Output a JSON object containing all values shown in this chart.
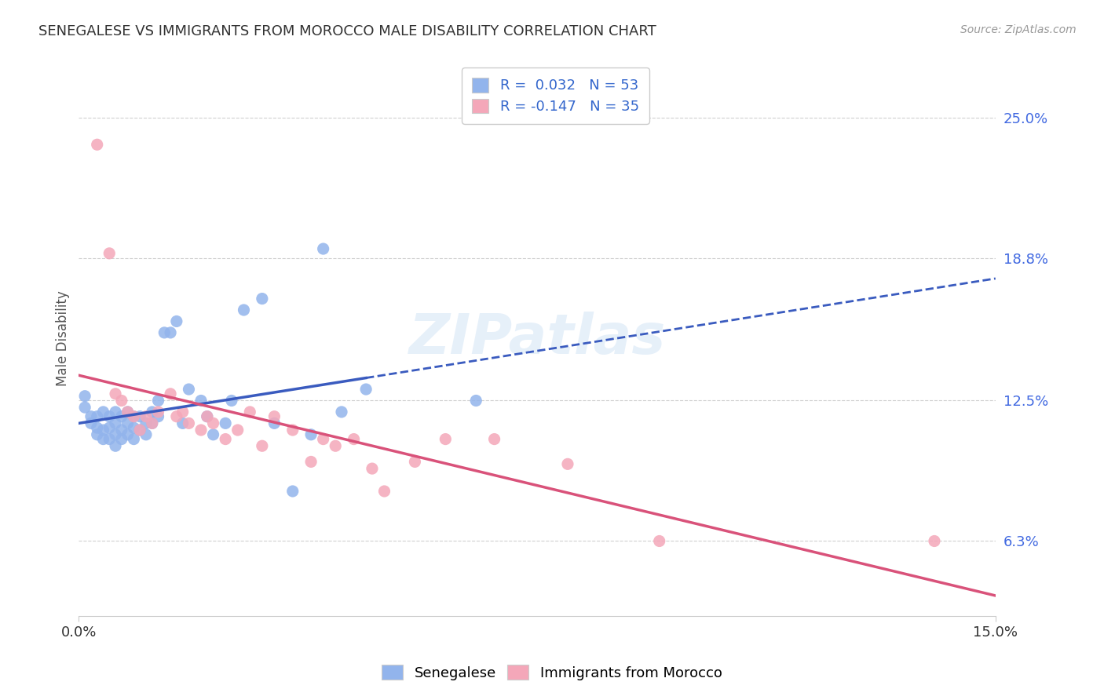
{
  "title": "SENEGALESE VS IMMIGRANTS FROM MOROCCO MALE DISABILITY CORRELATION CHART",
  "source": "Source: ZipAtlas.com",
  "ylabel": "Male Disability",
  "ytick_labels": [
    "6.3%",
    "12.5%",
    "18.8%",
    "25.0%"
  ],
  "ytick_values": [
    0.063,
    0.125,
    0.188,
    0.25
  ],
  "xlim": [
    0.0,
    0.15
  ],
  "ylim": [
    0.03,
    0.275
  ],
  "senegalese_color": "#92b4ec",
  "morocco_color": "#f4a7b9",
  "trend_senegalese_color": "#3a5bbf",
  "trend_morocco_color": "#d9527a",
  "watermark": "ZIPatlas",
  "senegalese_x": [
    0.001,
    0.001,
    0.002,
    0.002,
    0.003,
    0.003,
    0.003,
    0.004,
    0.004,
    0.004,
    0.005,
    0.005,
    0.005,
    0.006,
    0.006,
    0.006,
    0.006,
    0.007,
    0.007,
    0.007,
    0.008,
    0.008,
    0.008,
    0.009,
    0.009,
    0.009,
    0.01,
    0.01,
    0.011,
    0.011,
    0.012,
    0.012,
    0.013,
    0.013,
    0.014,
    0.015,
    0.016,
    0.017,
    0.018,
    0.02,
    0.021,
    0.022,
    0.024,
    0.025,
    0.027,
    0.03,
    0.032,
    0.035,
    0.038,
    0.04,
    0.043,
    0.047,
    0.065
  ],
  "senegalese_y": [
    0.122,
    0.127,
    0.115,
    0.118,
    0.11,
    0.113,
    0.118,
    0.108,
    0.112,
    0.12,
    0.108,
    0.113,
    0.118,
    0.105,
    0.11,
    0.115,
    0.12,
    0.108,
    0.112,
    0.118,
    0.11,
    0.115,
    0.12,
    0.108,
    0.113,
    0.118,
    0.112,
    0.118,
    0.11,
    0.115,
    0.115,
    0.12,
    0.118,
    0.125,
    0.155,
    0.155,
    0.16,
    0.115,
    0.13,
    0.125,
    0.118,
    0.11,
    0.115,
    0.125,
    0.165,
    0.17,
    0.115,
    0.085,
    0.11,
    0.192,
    0.12,
    0.13,
    0.125
  ],
  "morocco_x": [
    0.003,
    0.005,
    0.006,
    0.007,
    0.008,
    0.009,
    0.01,
    0.011,
    0.012,
    0.013,
    0.015,
    0.016,
    0.017,
    0.018,
    0.02,
    0.021,
    0.022,
    0.024,
    0.026,
    0.028,
    0.03,
    0.032,
    0.035,
    0.038,
    0.04,
    0.042,
    0.045,
    0.048,
    0.05,
    0.055,
    0.06,
    0.068,
    0.08,
    0.095,
    0.14
  ],
  "morocco_y": [
    0.238,
    0.19,
    0.128,
    0.125,
    0.12,
    0.118,
    0.112,
    0.118,
    0.115,
    0.12,
    0.128,
    0.118,
    0.12,
    0.115,
    0.112,
    0.118,
    0.115,
    0.108,
    0.112,
    0.12,
    0.105,
    0.118,
    0.112,
    0.098,
    0.108,
    0.105,
    0.108,
    0.095,
    0.085,
    0.098,
    0.108,
    0.108,
    0.097,
    0.063,
    0.063
  ]
}
